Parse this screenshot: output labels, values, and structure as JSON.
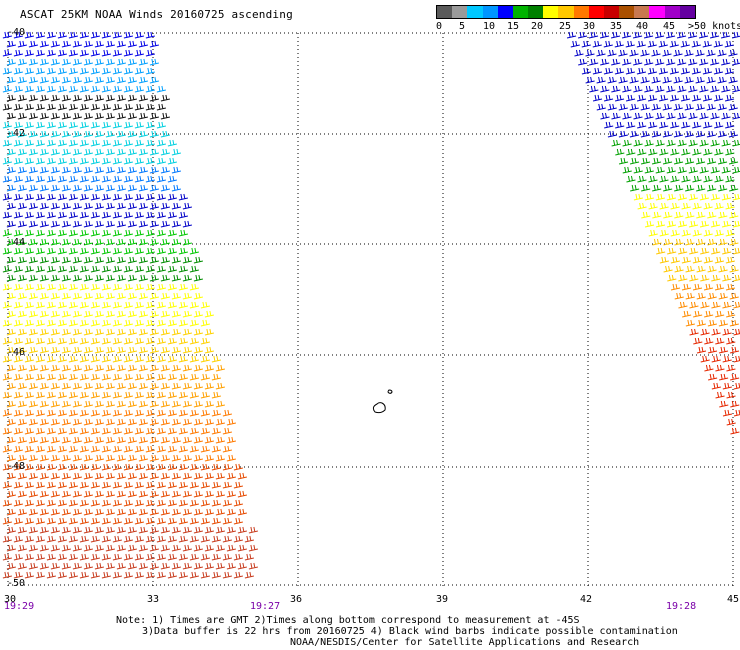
{
  "title": "ASCAT 25KM NOAA Winds 20160725 ascending",
  "colorbar": {
    "colors": [
      "#5a5a5a",
      "#9a9a9a",
      "#00c8ff",
      "#0096ff",
      "#0000ff",
      "#00b400",
      "#008000",
      "#ffff00",
      "#ffc800",
      "#ff7800",
      "#ff0000",
      "#c80000",
      "#aa5000",
      "#c87850",
      "#ff00ff",
      "#a000c8",
      "#6400a0"
    ],
    "labels": [
      "0",
      "5",
      "10",
      "15",
      "20",
      "25",
      "30",
      "35",
      "40",
      "45",
      ">50 knots"
    ]
  },
  "axes": {
    "lat_labels": [
      "-40",
      "-42",
      "-44",
      "-46",
      "-48",
      "-50"
    ],
    "lon_labels": [
      "30",
      "33",
      "36",
      "39",
      "42",
      "45"
    ],
    "lon_range": [
      30,
      45
    ],
    "lat_range": [
      -40,
      -50
    ],
    "grid": true
  },
  "pass_times": [
    "19:29",
    "19:27",
    "19:28"
  ],
  "notes": {
    "line1": "Note: 1) Times are GMT 2)Times along bottom correspond to measurement at -45S",
    "line2": "3)Data buffer is 22 hrs from 20160725 4) Black wind barbs indicate possible contamination",
    "line3": "NOAA/NESDIS/Center for Satellite Applications and Research"
  }
}
